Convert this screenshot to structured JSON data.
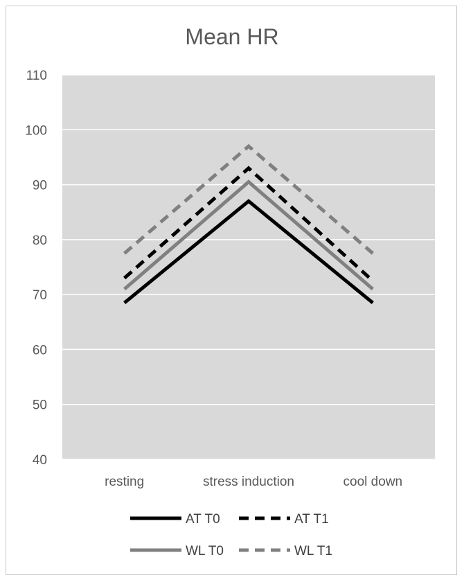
{
  "chart_data": {
    "type": "line",
    "title": "Mean HR",
    "xlabel": "",
    "ylabel": "",
    "categories": [
      "resting",
      "stress induction",
      "cool down"
    ],
    "ylim": [
      40,
      110
    ],
    "yticks": [
      40,
      50,
      60,
      70,
      80,
      90,
      100,
      110
    ],
    "grid": true,
    "legend_position": "bottom",
    "series": [
      {
        "name": "AT  T0",
        "values": [
          68.5,
          87,
          68.5
        ],
        "color": "#000000",
        "dash": "solid"
      },
      {
        "name": "AT  T1",
        "values": [
          73,
          93,
          72.5
        ],
        "color": "#000000",
        "dash": "dashed"
      },
      {
        "name": "WL  T0",
        "values": [
          71,
          90.5,
          71
        ],
        "color": "#808080",
        "dash": "solid"
      },
      {
        "name": "WL  T1",
        "values": [
          77.5,
          97,
          77.5
        ],
        "color": "#808080",
        "dash": "dashed"
      }
    ],
    "plot_background": "#d9d9d9",
    "gridline_color": "#ffffff"
  }
}
